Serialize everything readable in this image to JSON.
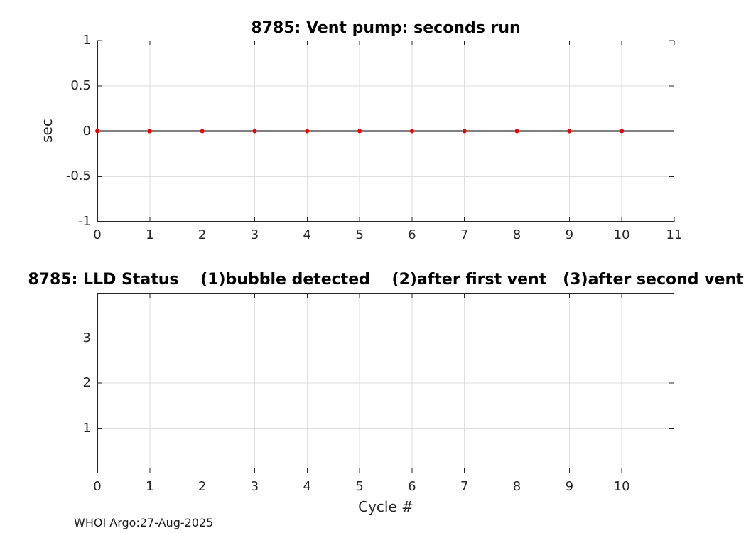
{
  "figure": {
    "background": "#ffffff",
    "footer": "WHOI Argo:27-Aug-2025",
    "axis_color": "#262626",
    "grid_color": "#dedede"
  },
  "chart_data": [
    {
      "type": "line",
      "title": "8785: Vent pump: seconds run",
      "xlabel": "",
      "ylabel": "sec",
      "xlim": [
        0,
        11
      ],
      "ylim": [
        -1,
        1
      ],
      "xticks": [
        0,
        1,
        2,
        3,
        4,
        5,
        6,
        7,
        8,
        9,
        10,
        11
      ],
      "xticklabels": [
        "0",
        "1",
        "2",
        "3",
        "4",
        "5",
        "6",
        "7",
        "8",
        "9",
        "10",
        "11"
      ],
      "yticks": [
        -1,
        -0.5,
        0,
        0.5,
        1
      ],
      "yticklabels": [
        "-1",
        "-0.5",
        "0",
        "0.5",
        "1"
      ],
      "grid": true,
      "legend": "none",
      "series": [
        {
          "name": "zero-line",
          "color": "#000000",
          "linewidth": 2,
          "linestyle": "solid",
          "marker": "none",
          "x": [
            0,
            11
          ],
          "y": [
            0,
            0
          ]
        },
        {
          "name": "vent-pump-seconds-run",
          "color": "#f20000",
          "linestyle": "none",
          "marker": "dot",
          "markersize": 3,
          "x": [
            0,
            1,
            2,
            3,
            4,
            5,
            6,
            7,
            8,
            9,
            10
          ],
          "y": [
            0,
            0,
            0,
            0,
            0,
            0,
            0,
            0,
            0,
            0,
            0
          ]
        }
      ]
    },
    {
      "type": "line",
      "title": "8785: LLD Status    (1)bubble detected    (2)after first vent   (3)after second vent",
      "xlabel": "Cycle #",
      "ylabel": "",
      "xlim": [
        0,
        11
      ],
      "ylim": [
        0,
        4
      ],
      "xticks": [
        0,
        1,
        2,
        3,
        4,
        5,
        6,
        7,
        8,
        9,
        10
      ],
      "xticklabels": [
        "0",
        "1",
        "2",
        "3",
        "4",
        "5",
        "6",
        "7",
        "8",
        "9",
        "10"
      ],
      "yticks": [
        1,
        2,
        3
      ],
      "yticklabels": [
        "1",
        "2",
        "3"
      ],
      "grid": true,
      "legend": "none",
      "series": []
    }
  ]
}
